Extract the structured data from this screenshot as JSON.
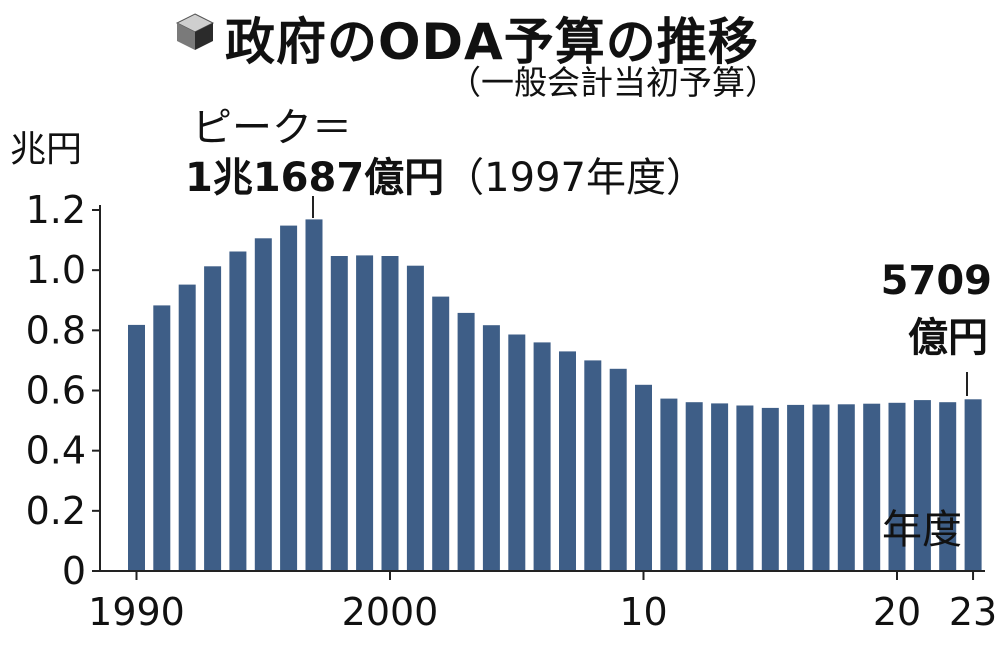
{
  "title": "政府のODA予算の推移",
  "subtitle": "（一般会計当初予算）",
  "icon": "cube-icon",
  "colors": {
    "bar": "#3e5e87",
    "text": "#111111",
    "axis": "#222222"
  },
  "annotations": {
    "peak_line1": "ピーク＝",
    "peak_value": "1兆1687億円",
    "peak_year": "（1997年度）",
    "last_value": "5709",
    "last_unit": "億円"
  },
  "chart_data": {
    "type": "bar",
    "ylabel": "兆円",
    "xlabel": "年度",
    "ylim": [
      0,
      1.2
    ],
    "yticks": [
      "0",
      "0.2",
      "0.4",
      "0.6",
      "0.8",
      "1.0",
      "1.2"
    ],
    "xtick_labels": [
      {
        "year": 1990,
        "label": "1990"
      },
      {
        "year": 2000,
        "label": "2000"
      },
      {
        "year": 2010,
        "label": "10"
      },
      {
        "year": 2020,
        "label": "20"
      },
      {
        "year": 2023,
        "label": "23"
      }
    ],
    "x": [
      1990,
      1991,
      1992,
      1993,
      1994,
      1995,
      1996,
      1997,
      1998,
      1999,
      2000,
      2001,
      2002,
      2003,
      2004,
      2005,
      2006,
      2007,
      2008,
      2009,
      2010,
      2011,
      2012,
      2013,
      2014,
      2015,
      2016,
      2017,
      2018,
      2019,
      2020,
      2021,
      2022,
      2023
    ],
    "values": [
      0.818,
      0.883,
      0.952,
      1.013,
      1.062,
      1.106,
      1.148,
      1.1687,
      1.047,
      1.049,
      1.047,
      1.015,
      0.912,
      0.858,
      0.817,
      0.786,
      0.76,
      0.73,
      0.7,
      0.672,
      0.619,
      0.573,
      0.561,
      0.557,
      0.55,
      0.542,
      0.552,
      0.553,
      0.554,
      0.556,
      0.559,
      0.568,
      0.561,
      0.5709
    ]
  }
}
